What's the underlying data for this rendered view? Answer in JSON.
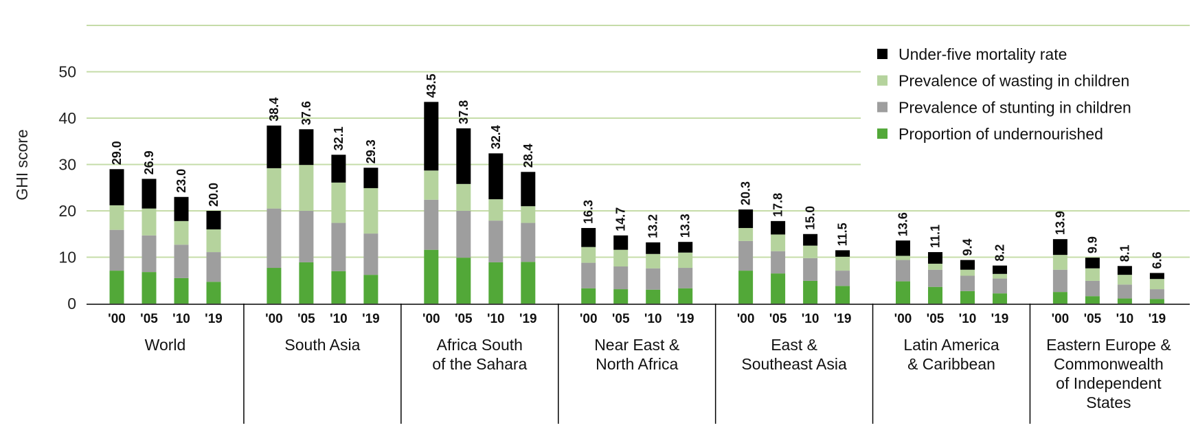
{
  "chart_data": {
    "type": "bar",
    "stacked": true,
    "title": "",
    "xlabel": "",
    "ylabel": "GHI score",
    "ylim": [
      0,
      60
    ],
    "yticks": [
      0,
      10,
      20,
      30,
      40,
      50
    ],
    "grid": true,
    "legend_position": "top-right",
    "years": [
      "'00",
      "'05",
      "'10",
      "'19"
    ],
    "groups": [
      {
        "label": [
          "World"
        ],
        "totals": [
          "29.0",
          "26.9",
          "23.0",
          "20.0"
        ]
      },
      {
        "label": [
          "South Asia"
        ],
        "totals": [
          "38.4",
          "37.6",
          "32.1",
          "29.3"
        ]
      },
      {
        "label": [
          "Africa South",
          "of the Sahara"
        ],
        "totals": [
          "43.5",
          "37.8",
          "32.4",
          "28.4"
        ]
      },
      {
        "label": [
          "Near East &",
          "North Africa"
        ],
        "totals": [
          "16.3",
          "14.7",
          "13.2",
          "13.3"
        ]
      },
      {
        "label": [
          "East &",
          "Southeast Asia"
        ],
        "totals": [
          "20.3",
          "17.8",
          "15.0",
          "11.5"
        ]
      },
      {
        "label": [
          "Latin America",
          "& Caribbean"
        ],
        "totals": [
          "13.6",
          "11.1",
          "9.4",
          "8.2"
        ]
      },
      {
        "label": [
          "Eastern Europe &",
          "Commonwealth",
          "of Independent",
          "States"
        ],
        "totals": [
          "13.9",
          "9.9",
          "8.1",
          "6.6"
        ]
      }
    ],
    "series": [
      {
        "name": "Proportion of undernourished",
        "color": "#52a838",
        "values": [
          [
            7.1,
            6.8,
            5.5,
            4.7
          ],
          [
            7.7,
            8.9,
            7.0,
            6.2
          ],
          [
            11.6,
            9.9,
            8.9,
            9.0
          ],
          [
            3.3,
            3.1,
            3.0,
            3.3
          ],
          [
            7.1,
            6.5,
            4.9,
            3.8
          ],
          [
            4.8,
            3.6,
            2.7,
            2.2
          ],
          [
            2.5,
            1.6,
            1.1,
            1.0
          ]
        ]
      },
      {
        "name": "Prevalence of stunting in children",
        "color": "#9e9e9e",
        "values": [
          [
            8.8,
            7.9,
            7.2,
            6.4
          ],
          [
            12.8,
            11.1,
            10.4,
            8.9
          ],
          [
            10.8,
            10.1,
            9.0,
            8.4
          ],
          [
            5.5,
            4.9,
            4.6,
            4.4
          ],
          [
            6.4,
            4.8,
            4.9,
            3.3
          ],
          [
            4.6,
            3.7,
            3.3,
            3.2
          ],
          [
            4.8,
            3.3,
            3.0,
            2.1
          ]
        ]
      },
      {
        "name": "Prevalence of wasting in children",
        "color": "#b5d39d",
        "values": [
          [
            5.3,
            5.8,
            5.1,
            4.9
          ],
          [
            8.7,
            9.9,
            8.7,
            9.8
          ],
          [
            6.3,
            5.8,
            4.6,
            3.6
          ],
          [
            3.4,
            3.6,
            3.1,
            3.3
          ],
          [
            2.8,
            3.6,
            2.7,
            3.0
          ],
          [
            0.9,
            1.3,
            1.3,
            1.0
          ],
          [
            3.2,
            2.7,
            2.1,
            2.2
          ]
        ]
      },
      {
        "name": "Under-five mortality rate",
        "color": "#000000",
        "values": [
          [
            7.8,
            6.4,
            5.2,
            4.0
          ],
          [
            9.2,
            7.7,
            6.0,
            4.4
          ],
          [
            14.8,
            12.0,
            9.9,
            7.4
          ],
          [
            4.1,
            3.1,
            2.5,
            2.3
          ],
          [
            4.0,
            2.9,
            2.5,
            1.4
          ],
          [
            3.3,
            2.5,
            2.1,
            1.8
          ],
          [
            3.4,
            2.3,
            1.9,
            1.3
          ]
        ]
      }
    ],
    "legend_order": [
      "Under-five mortality rate",
      "Prevalence of wasting in children",
      "Prevalence of stunting in children",
      "Proportion of undernourished"
    ]
  },
  "colors": {
    "grid": "#c5dca8",
    "axis": "#000000"
  }
}
